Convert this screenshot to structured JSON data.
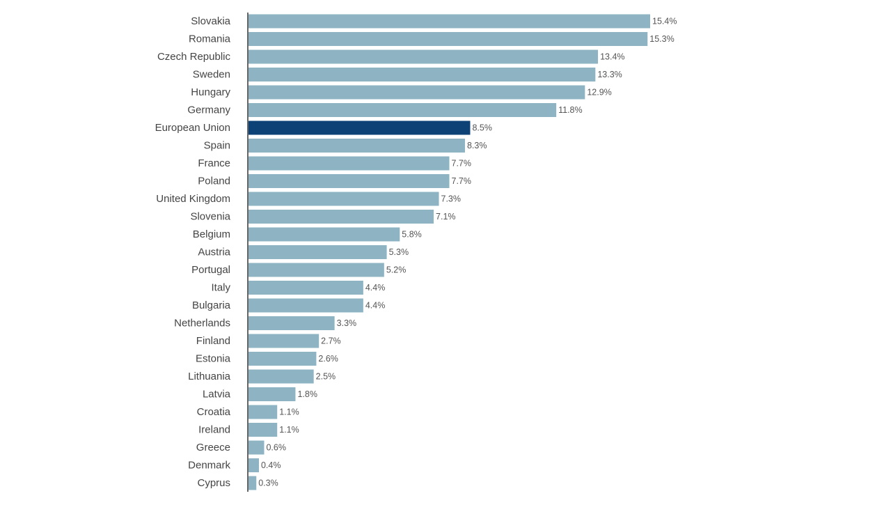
{
  "colors": {
    "bar": "#8eb4c3",
    "highlight": "#0d4276",
    "axis": "#333333"
  },
  "chart_data": {
    "type": "bar",
    "orientation": "horizontal",
    "title": "",
    "xlabel": "",
    "ylabel": "",
    "xlim": [
      0,
      15.4
    ],
    "value_suffix": "%",
    "highlight": "European Union",
    "grid": false,
    "categories": [
      "Slovakia",
      "Romania",
      "Czech Republic",
      "Sweden",
      "Hungary",
      "Germany",
      "European Union",
      "Spain",
      "France",
      "Poland",
      "United Kingdom",
      "Slovenia",
      "Belgium",
      "Austria",
      "Portugal",
      "Italy",
      "Bulgaria",
      "Netherlands",
      "Finland",
      "Estonia",
      "Lithuania",
      "Latvia",
      "Croatia",
      "Ireland",
      "Greece",
      "Denmark",
      "Cyprus"
    ],
    "values": [
      15.4,
      15.3,
      13.4,
      13.3,
      12.9,
      11.8,
      8.5,
      8.3,
      7.7,
      7.7,
      7.3,
      7.1,
      5.8,
      5.3,
      5.2,
      4.4,
      4.4,
      3.3,
      2.7,
      2.6,
      2.5,
      1.8,
      1.1,
      1.1,
      0.6,
      0.4,
      0.3
    ],
    "value_labels": [
      "15.4%",
      "15.3%",
      "13.4%",
      "13.3%",
      "12.9%",
      "11.8%",
      "8.5%",
      "8.3%",
      "7.7%",
      "7.7%",
      "7.3%",
      "7.1%",
      "5.8%",
      "5.3%",
      "5.2%",
      "4.4%",
      "4.4%",
      "3.3%",
      "2.7%",
      "2.6%",
      "2.5%",
      "1.8%",
      "1.1%",
      "1.1%",
      "0.6%",
      "0.4%",
      "0.3%"
    ]
  }
}
